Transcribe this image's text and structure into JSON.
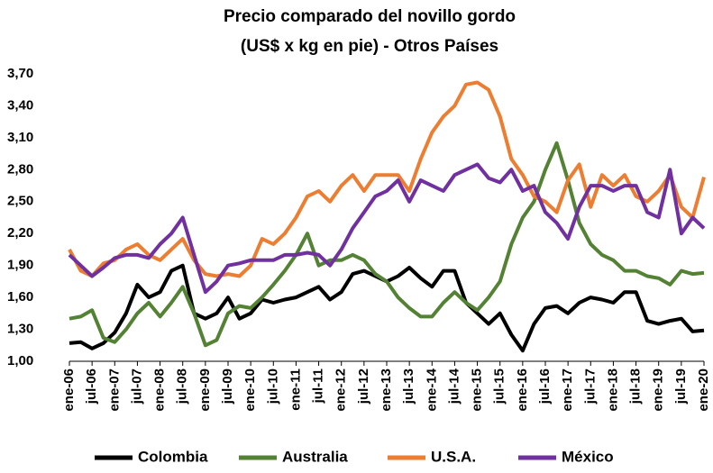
{
  "chart_data": {
    "type": "line",
    "title": "Precio comparado del novillo gordo",
    "subtitle": "(US$ x kg en pie) - Otros Países",
    "categories": [
      "ene-06",
      null,
      "jul-06",
      null,
      "ene-07",
      null,
      "jul-07",
      null,
      "ene-08",
      null,
      "jul-08",
      null,
      "ene-09",
      null,
      "jul-09",
      null,
      "ene-10",
      null,
      "jul-10",
      null,
      "ene-11",
      null,
      "jul-11",
      null,
      "ene-12",
      null,
      "jul-12",
      null,
      "ene-13",
      null,
      "jul-13",
      null,
      "ene-14",
      null,
      "jul-14",
      null,
      "ene-15",
      null,
      "jul-15",
      null,
      "ene-16",
      null,
      "jul-16",
      null,
      "ene-17",
      null,
      "jul-17",
      null,
      "ene-18",
      null,
      "jul-18",
      null,
      "ene-19",
      null,
      "jul-19",
      null,
      "ene-20"
    ],
    "series": [
      {
        "name": "Colombia",
        "color": "#000000",
        "values": [
          1.17,
          1.18,
          1.12,
          1.17,
          1.27,
          1.45,
          1.72,
          1.6,
          1.65,
          1.85,
          1.9,
          1.45,
          1.4,
          1.45,
          1.6,
          1.4,
          1.45,
          1.58,
          1.55,
          1.58,
          1.6,
          1.65,
          1.7,
          1.58,
          1.65,
          1.82,
          1.85,
          1.8,
          1.75,
          1.8,
          1.88,
          1.78,
          1.7,
          1.85,
          1.85,
          1.55,
          1.45,
          1.35,
          1.45,
          1.25,
          1.1,
          1.35,
          1.5,
          1.52,
          1.45,
          1.55,
          1.6,
          1.58,
          1.55,
          1.65,
          1.65,
          1.38,
          1.35,
          1.38,
          1.4,
          1.28,
          1.29
        ]
      },
      {
        "name": "Australia",
        "color": "#548235",
        "values": [
          1.4,
          1.42,
          1.48,
          1.22,
          1.18,
          1.3,
          1.45,
          1.55,
          1.42,
          1.55,
          1.7,
          1.45,
          1.15,
          1.2,
          1.45,
          1.52,
          1.5,
          1.6,
          1.72,
          1.85,
          2.0,
          2.2,
          1.9,
          1.95,
          1.95,
          2.0,
          1.95,
          1.82,
          1.75,
          1.6,
          1.5,
          1.42,
          1.42,
          1.55,
          1.65,
          1.55,
          1.48,
          1.6,
          1.75,
          2.1,
          2.35,
          2.5,
          2.8,
          3.05,
          2.7,
          2.3,
          2.1,
          2.0,
          1.95,
          1.85,
          1.85,
          1.8,
          1.78,
          1.72,
          1.85,
          1.82,
          1.83
        ]
      },
      {
        "name": "U.S.A.",
        "color": "#ed7d31",
        "values": [
          2.05,
          1.85,
          1.8,
          1.92,
          1.95,
          2.05,
          2.1,
          2.0,
          1.95,
          2.05,
          2.15,
          1.95,
          1.82,
          1.8,
          1.82,
          1.8,
          1.9,
          2.15,
          2.1,
          2.2,
          2.35,
          2.55,
          2.6,
          2.5,
          2.65,
          2.75,
          2.6,
          2.75,
          2.75,
          2.75,
          2.6,
          2.9,
          3.15,
          3.3,
          3.4,
          3.6,
          3.62,
          3.55,
          3.3,
          2.9,
          2.75,
          2.55,
          2.5,
          2.4,
          2.7,
          2.85,
          2.45,
          2.75,
          2.65,
          2.75,
          2.55,
          2.5,
          2.6,
          2.75,
          2.45,
          2.35,
          2.73
        ]
      },
      {
        "name": "México",
        "color": "#7030a0",
        "values": [
          2.0,
          1.9,
          1.8,
          1.88,
          1.97,
          2.0,
          2.0,
          1.97,
          2.1,
          2.2,
          2.35,
          2.0,
          1.65,
          1.75,
          1.9,
          1.92,
          1.95,
          1.95,
          1.95,
          2.0,
          2.0,
          2.02,
          2.0,
          1.9,
          2.05,
          2.25,
          2.4,
          2.55,
          2.6,
          2.7,
          2.5,
          2.7,
          2.65,
          2.6,
          2.75,
          2.8,
          2.85,
          2.72,
          2.68,
          2.8,
          2.6,
          2.65,
          2.4,
          2.3,
          2.15,
          2.45,
          2.65,
          2.65,
          2.6,
          2.65,
          2.65,
          2.4,
          2.35,
          2.8,
          2.2,
          2.35,
          2.25
        ]
      }
    ],
    "ylim": [
      1.0,
      3.7
    ],
    "yticks": [
      {
        "value": 1.0,
        "label": "1,00"
      },
      {
        "value": 1.3,
        "label": "1,30"
      },
      {
        "value": 1.6,
        "label": "1,60"
      },
      {
        "value": 1.9,
        "label": "1,90"
      },
      {
        "value": 2.2,
        "label": "2,20"
      },
      {
        "value": 2.5,
        "label": "2,50"
      },
      {
        "value": 2.8,
        "label": "2,80"
      },
      {
        "value": 3.1,
        "label": "3,10"
      },
      {
        "value": 3.4,
        "label": "3,40"
      },
      {
        "value": 3.7,
        "label": "3,70"
      }
    ],
    "grid": false,
    "legend": "bottom"
  }
}
